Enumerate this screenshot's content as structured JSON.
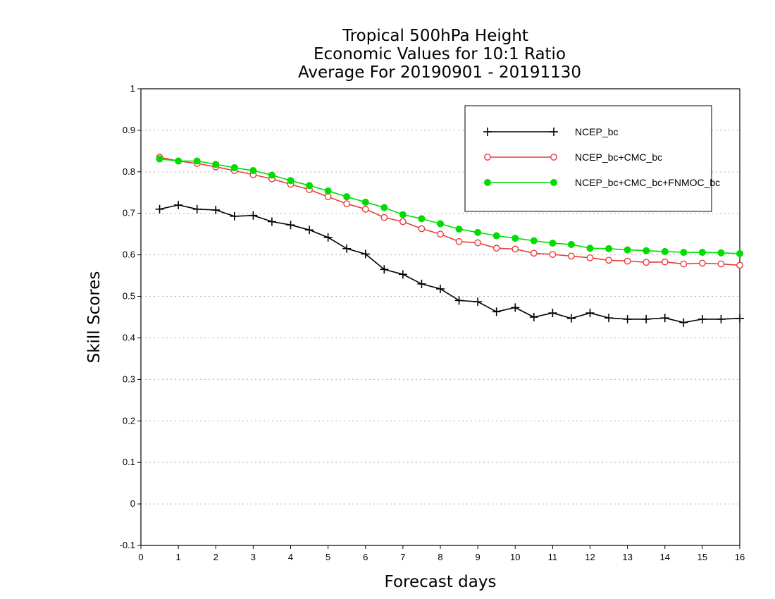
{
  "chart_data": {
    "type": "line",
    "title_lines": [
      "Tropical 500hPa Height",
      "Economic Values for 10:1 Ratio",
      "Average For 20190901 - 20191130"
    ],
    "xlabel": "Forecast days",
    "ylabel": "Skill Scores",
    "xlim": [
      0,
      16
    ],
    "ylim": [
      -0.1,
      1
    ],
    "x_ticks": [
      "0",
      "1",
      "2",
      "3",
      "4",
      "5",
      "6",
      "7",
      "8",
      "9",
      "10",
      "11",
      "12",
      "13",
      "14",
      "15",
      "16"
    ],
    "y_ticks": [
      "-0.1",
      "0",
      "0.1",
      "0.2",
      "0.3",
      "0.4",
      "0.5",
      "0.6",
      "0.7",
      "0.8",
      "0.9",
      "1"
    ],
    "grid": "horizontal dotted",
    "legend_position": "top-right",
    "x": [
      0.5,
      1,
      1.5,
      2,
      2.5,
      3,
      3.5,
      4,
      4.5,
      5,
      5.5,
      6,
      6.5,
      7,
      7.5,
      8,
      8.5,
      9,
      9.5,
      10,
      10.5,
      11,
      11.5,
      12,
      12.5,
      13,
      13.5,
      14,
      14.5,
      15,
      15.5,
      16
    ],
    "series": [
      {
        "name": "NCEP_bc",
        "color": "#000000",
        "marker": "plus",
        "values": [
          0.71,
          0.72,
          0.71,
          0.708,
          0.693,
          0.695,
          0.68,
          0.672,
          0.66,
          0.642,
          0.615,
          0.602,
          0.565,
          0.553,
          0.53,
          0.518,
          0.49,
          0.487,
          0.463,
          0.473,
          0.45,
          0.46,
          0.447,
          0.46,
          0.448,
          0.445,
          0.445,
          0.448,
          0.437,
          0.445,
          0.445,
          0.447
        ]
      },
      {
        "name": "NCEP_bc+CMC_bc",
        "color": "#e83c3c",
        "marker": "open-circle",
        "values": [
          0.835,
          0.826,
          0.82,
          0.812,
          0.803,
          0.793,
          0.783,
          0.77,
          0.757,
          0.74,
          0.723,
          0.71,
          0.69,
          0.68,
          0.663,
          0.65,
          0.632,
          0.629,
          0.616,
          0.614,
          0.604,
          0.601,
          0.597,
          0.593,
          0.587,
          0.585,
          0.582,
          0.583,
          0.578,
          0.58,
          0.578,
          0.575
        ]
      },
      {
        "name": "NCEP_bc+CMC_bc+FNMOC_bc",
        "color": "#00dd00",
        "marker": "filled-circle",
        "values": [
          0.831,
          0.826,
          0.826,
          0.818,
          0.81,
          0.803,
          0.792,
          0.779,
          0.767,
          0.754,
          0.74,
          0.727,
          0.714,
          0.697,
          0.687,
          0.675,
          0.662,
          0.654,
          0.646,
          0.64,
          0.634,
          0.628,
          0.625,
          0.616,
          0.615,
          0.612,
          0.61,
          0.608,
          0.606,
          0.606,
          0.605,
          0.603
        ]
      }
    ]
  }
}
